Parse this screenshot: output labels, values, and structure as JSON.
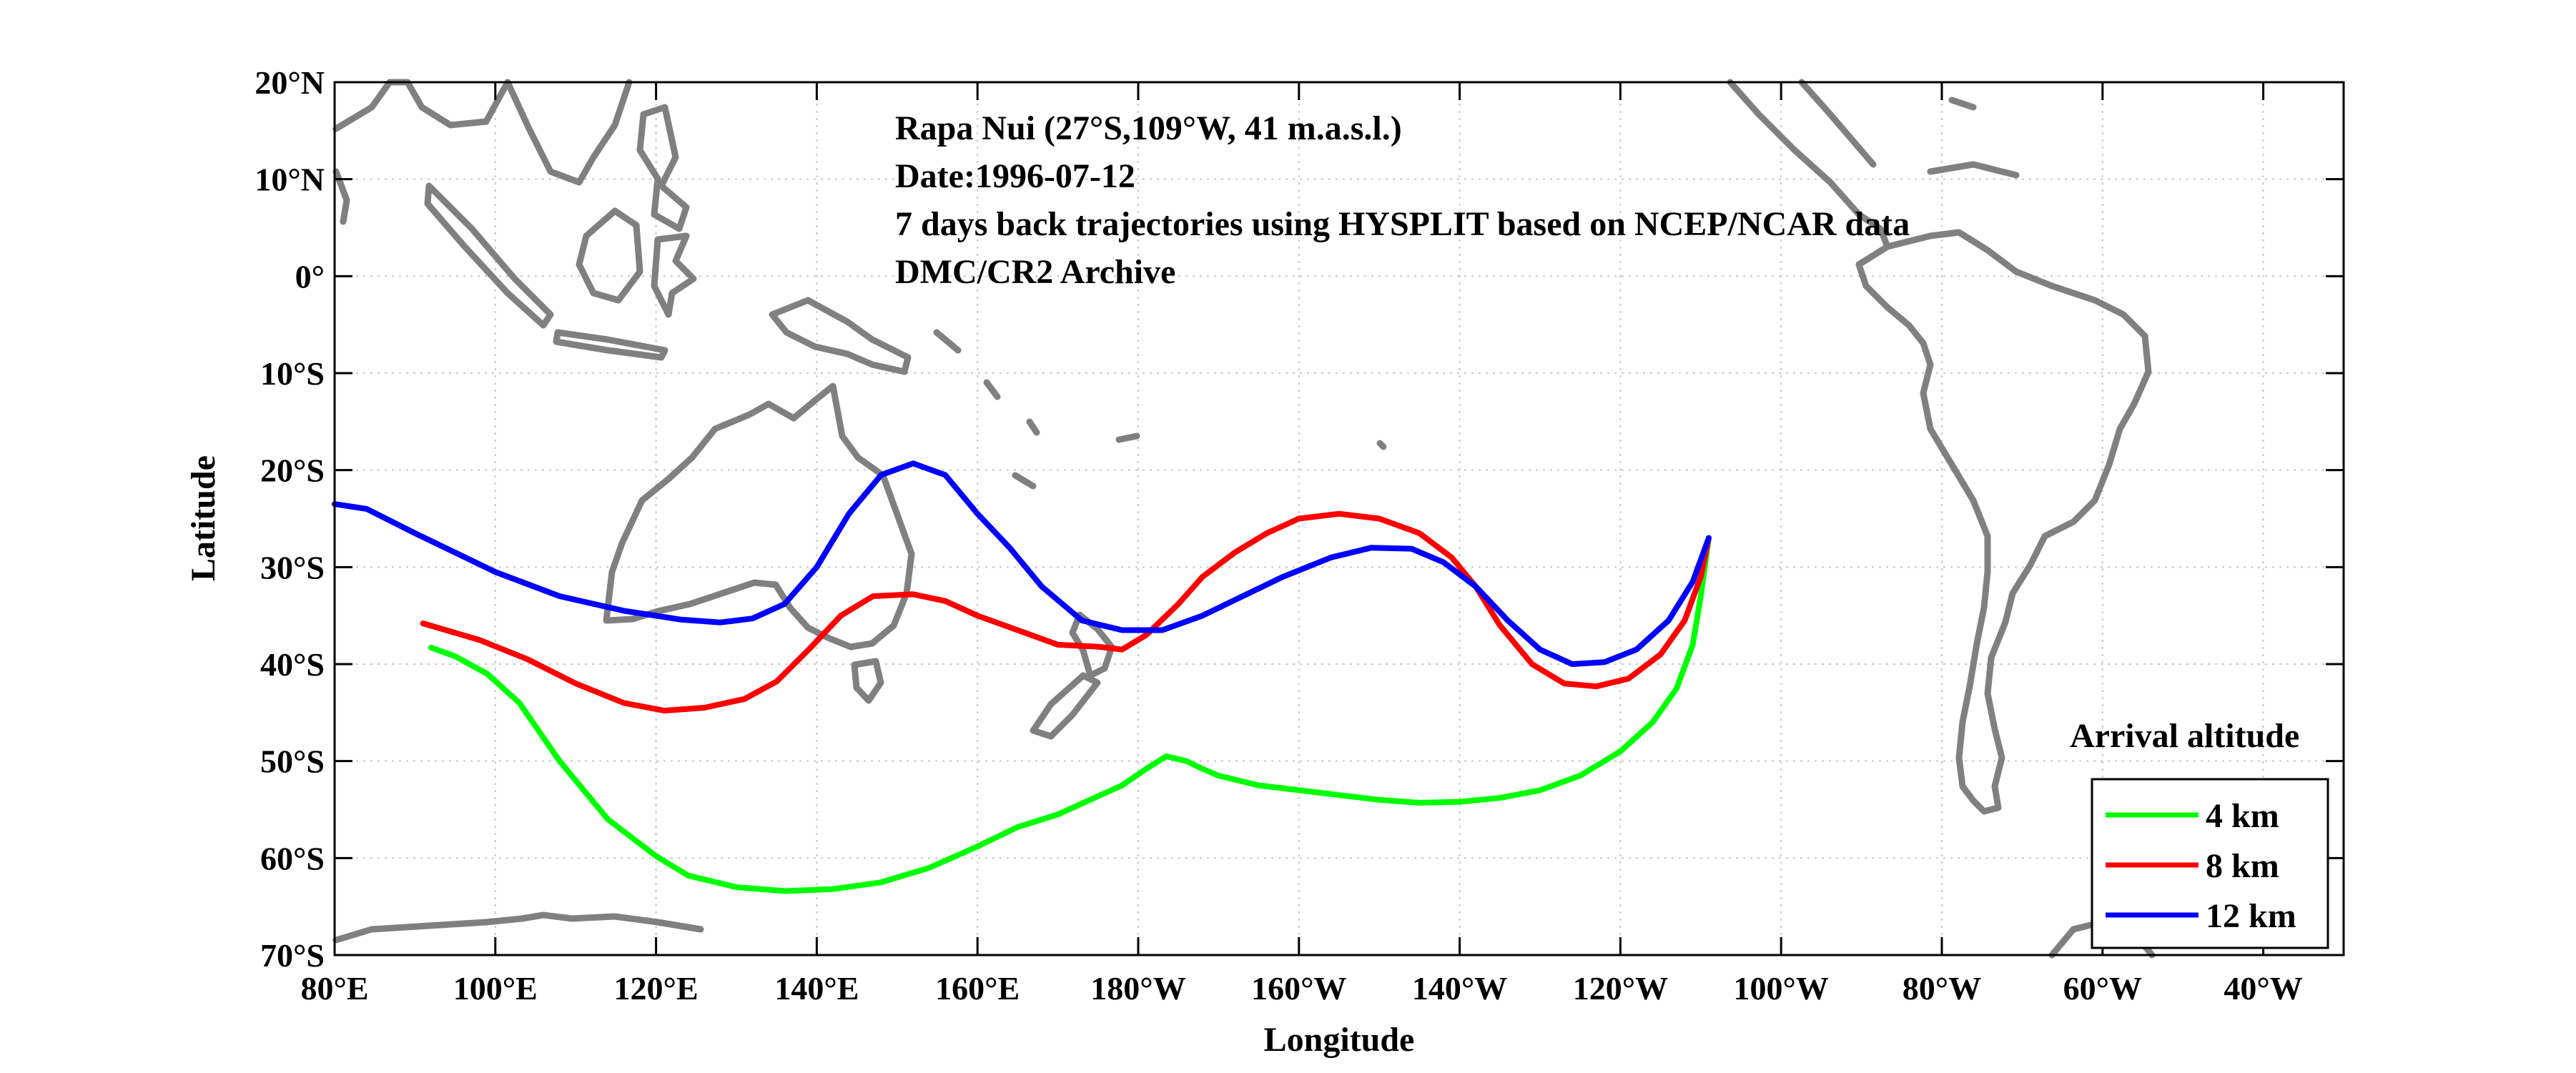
{
  "chart_data": {
    "type": "line",
    "annotations": [
      "Rapa Nui (27°S,109°W, 41 m.a.s.l.)",
      "Date:1996-07-12",
      "7 days back trajectories using HYSPLIT based on NCEP/NCAR data",
      "DMC/CR2 Archive"
    ],
    "xlabel": "Longitude",
    "ylabel": "Latitude",
    "xlim": [
      80,
      330
    ],
    "ylim": [
      -70,
      20
    ],
    "grid": true,
    "x_ticks": [
      {
        "value": 80,
        "label": "80°E"
      },
      {
        "value": 100,
        "label": "100°E"
      },
      {
        "value": 120,
        "label": "120°E"
      },
      {
        "value": 140,
        "label": "140°E"
      },
      {
        "value": 160,
        "label": "160°E"
      },
      {
        "value": 180,
        "label": "180°W"
      },
      {
        "value": 200,
        "label": "160°W"
      },
      {
        "value": 220,
        "label": "140°W"
      },
      {
        "value": 240,
        "label": "120°W"
      },
      {
        "value": 260,
        "label": "100°W"
      },
      {
        "value": 280,
        "label": "80°W"
      },
      {
        "value": 300,
        "label": "60°W"
      },
      {
        "value": 320,
        "label": "40°W"
      }
    ],
    "y_ticks": [
      {
        "value": 20,
        "label": "20°N"
      },
      {
        "value": 10,
        "label": "10°N"
      },
      {
        "value": 0,
        "label": "0°"
      },
      {
        "value": -10,
        "label": "10°S"
      },
      {
        "value": -20,
        "label": "20°S"
      },
      {
        "value": -30,
        "label": "30°S"
      },
      {
        "value": -40,
        "label": "40°S"
      },
      {
        "value": -50,
        "label": "50°S"
      },
      {
        "value": -60,
        "label": "60°S"
      },
      {
        "value": -70,
        "label": "70°S"
      }
    ],
    "legend": {
      "title": "Arrival altitude",
      "position": "bottom-right"
    },
    "series": [
      {
        "name": "4 km",
        "color": "#00ff00",
        "points": [
          [
            251,
            -27
          ],
          [
            250,
            -33
          ],
          [
            249,
            -38
          ],
          [
            247,
            -42.5
          ],
          [
            244,
            -46
          ],
          [
            240,
            -49
          ],
          [
            235,
            -51.5
          ],
          [
            230,
            -53
          ],
          [
            225,
            -53.8
          ],
          [
            220,
            -54.2
          ],
          [
            215,
            -54.3
          ],
          [
            210,
            -54
          ],
          [
            205,
            -53.5
          ],
          [
            200,
            -53
          ],
          [
            195,
            -52.5
          ],
          [
            190,
            -51.5
          ],
          [
            188,
            -50.8
          ],
          [
            186,
            -50
          ],
          [
            183.5,
            -49.5
          ],
          [
            181,
            -50.8
          ],
          [
            178,
            -52.5
          ],
          [
            174,
            -54
          ],
          [
            170,
            -55.5
          ],
          [
            165,
            -56.8
          ],
          [
            160,
            -58.8
          ],
          [
            154,
            -61
          ],
          [
            148,
            -62.5
          ],
          [
            142,
            -63.2
          ],
          [
            136,
            -63.4
          ],
          [
            130,
            -63
          ],
          [
            124,
            -61.8
          ],
          [
            120,
            -59.8
          ],
          [
            114,
            -56
          ],
          [
            108,
            -50
          ],
          [
            103,
            -44
          ],
          [
            99,
            -41
          ],
          [
            95,
            -39.2
          ],
          [
            92,
            -38.3
          ]
        ]
      },
      {
        "name": "8 km",
        "color": "#ff0000",
        "points": [
          [
            251,
            -27
          ],
          [
            250,
            -31
          ],
          [
            248,
            -35.5
          ],
          [
            245,
            -39
          ],
          [
            241,
            -41.5
          ],
          [
            237,
            -42.3
          ],
          [
            233,
            -42
          ],
          [
            229,
            -40
          ],
          [
            225,
            -36
          ],
          [
            222,
            -32
          ],
          [
            219,
            -29
          ],
          [
            215,
            -26.5
          ],
          [
            210,
            -25
          ],
          [
            205,
            -24.5
          ],
          [
            200,
            -25
          ],
          [
            196,
            -26.5
          ],
          [
            192,
            -28.5
          ],
          [
            188,
            -31
          ],
          [
            185,
            -33.8
          ],
          [
            181,
            -37
          ],
          [
            178,
            -38.5
          ],
          [
            175,
            -38.2
          ],
          [
            170,
            -38
          ],
          [
            165,
            -36.5
          ],
          [
            160,
            -35
          ],
          [
            156,
            -33.5
          ],
          [
            152,
            -32.8
          ],
          [
            147,
            -33
          ],
          [
            143,
            -35
          ],
          [
            139,
            -38.5
          ],
          [
            135,
            -41.8
          ],
          [
            131,
            -43.6
          ],
          [
            126,
            -44.5
          ],
          [
            121,
            -44.8
          ],
          [
            116,
            -44
          ],
          [
            110,
            -42
          ],
          [
            104,
            -39.5
          ],
          [
            98,
            -37.5
          ],
          [
            91,
            -35.8
          ]
        ]
      },
      {
        "name": "12 km",
        "color": "#0000ff",
        "points": [
          [
            251,
            -27
          ],
          [
            249,
            -31.5
          ],
          [
            246,
            -35.5
          ],
          [
            242,
            -38.5
          ],
          [
            238,
            -39.8
          ],
          [
            234,
            -40
          ],
          [
            230,
            -38.5
          ],
          [
            226,
            -35.5
          ],
          [
            222,
            -32
          ],
          [
            218,
            -29.5
          ],
          [
            214,
            -28.1
          ],
          [
            209,
            -28
          ],
          [
            204,
            -29
          ],
          [
            198,
            -31
          ],
          [
            193,
            -33
          ],
          [
            188,
            -35
          ],
          [
            183,
            -36.5
          ],
          [
            178,
            -36.5
          ],
          [
            173,
            -35.5
          ],
          [
            168,
            -32
          ],
          [
            164,
            -28
          ],
          [
            160,
            -24.5
          ],
          [
            156,
            -20.5
          ],
          [
            152,
            -19.3
          ],
          [
            148,
            -20.5
          ],
          [
            144,
            -24.5
          ],
          [
            140,
            -30
          ],
          [
            136,
            -33.8
          ],
          [
            132,
            -35.3
          ],
          [
            128,
            -35.7
          ],
          [
            123,
            -35.4
          ],
          [
            116,
            -34.5
          ],
          [
            108,
            -33
          ],
          [
            100,
            -30.5
          ],
          [
            90,
            -26.5
          ],
          [
            84,
            -24
          ],
          [
            80,
            -23.5
          ]
        ]
      }
    ]
  }
}
